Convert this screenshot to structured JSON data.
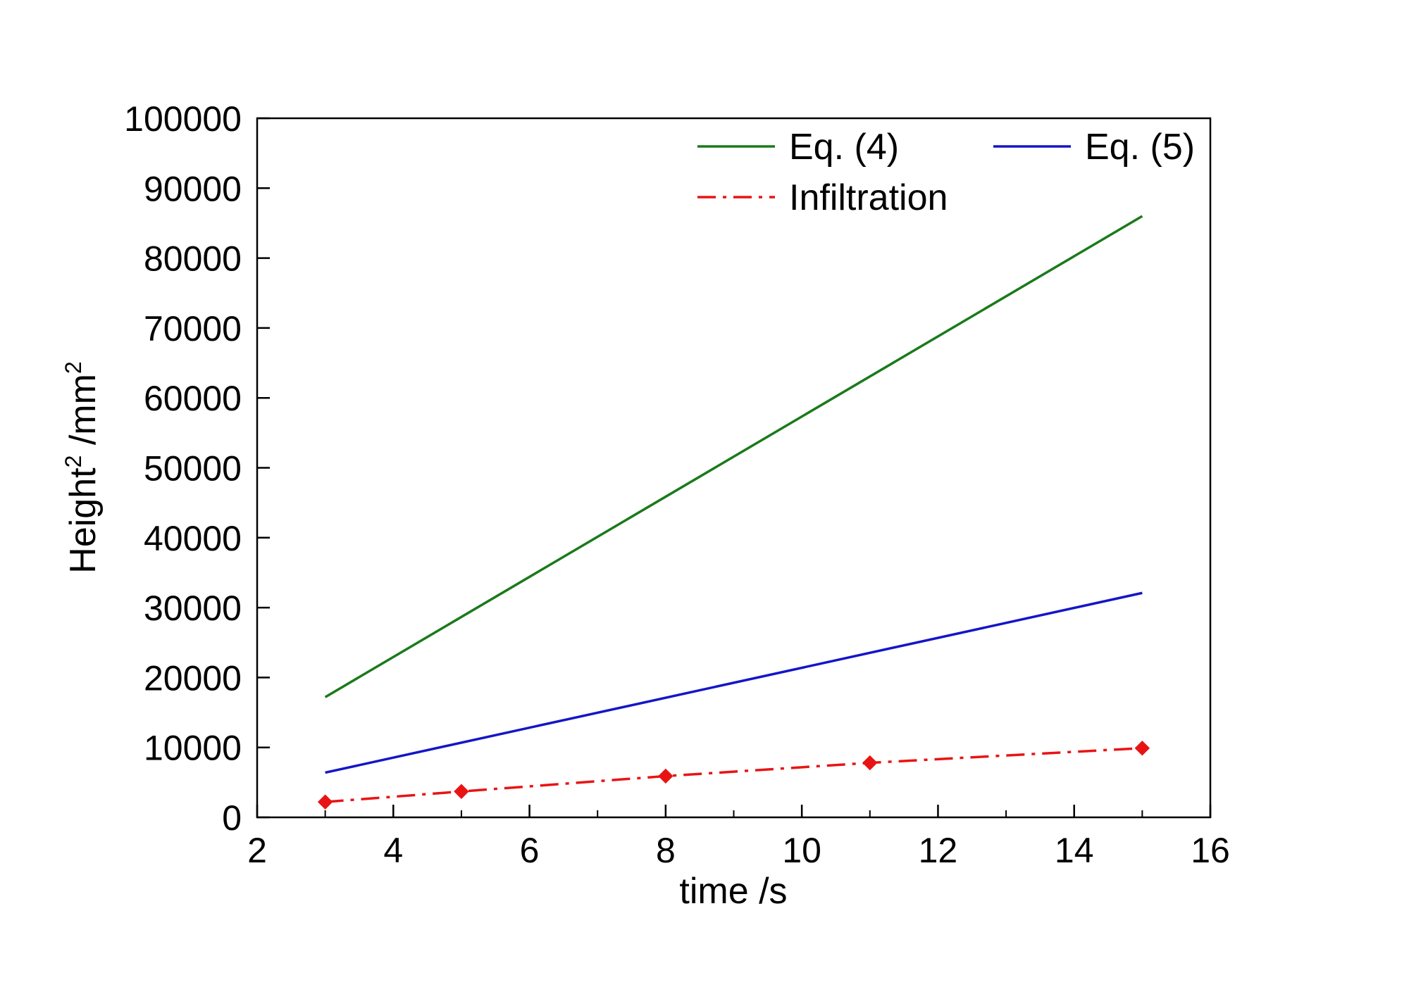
{
  "chart_data": {
    "type": "line",
    "xlabel": "time /s",
    "ylabel": {
      "text": "Height",
      "sup1": "2",
      "unit": " /mm",
      "sup2": "2"
    },
    "xlim": [
      2,
      16
    ],
    "ylim": [
      0,
      100000
    ],
    "x_ticks": [
      2,
      4,
      6,
      8,
      10,
      12,
      14,
      16
    ],
    "y_ticks": [
      0,
      10000,
      20000,
      30000,
      40000,
      50000,
      60000,
      70000,
      80000,
      90000,
      100000
    ],
    "grid": false,
    "legend_position": "top-right",
    "series": [
      {
        "name": "Eq. (4)",
        "color": "#1a7a1a",
        "style": "solid",
        "marker": "none",
        "x": [
          3,
          15
        ],
        "y": [
          17200,
          86000
        ]
      },
      {
        "name": "Eq. (5)",
        "color": "#1515c8",
        "style": "solid",
        "marker": "none",
        "x": [
          3,
          15
        ],
        "y": [
          6400,
          32100
        ]
      },
      {
        "name": "Infiltration",
        "color": "#e81414",
        "style": "dashdot",
        "marker": "diamond",
        "x": [
          3,
          5,
          8,
          11,
          15
        ],
        "y": [
          2200,
          3700,
          5900,
          7800,
          9900
        ]
      }
    ]
  }
}
